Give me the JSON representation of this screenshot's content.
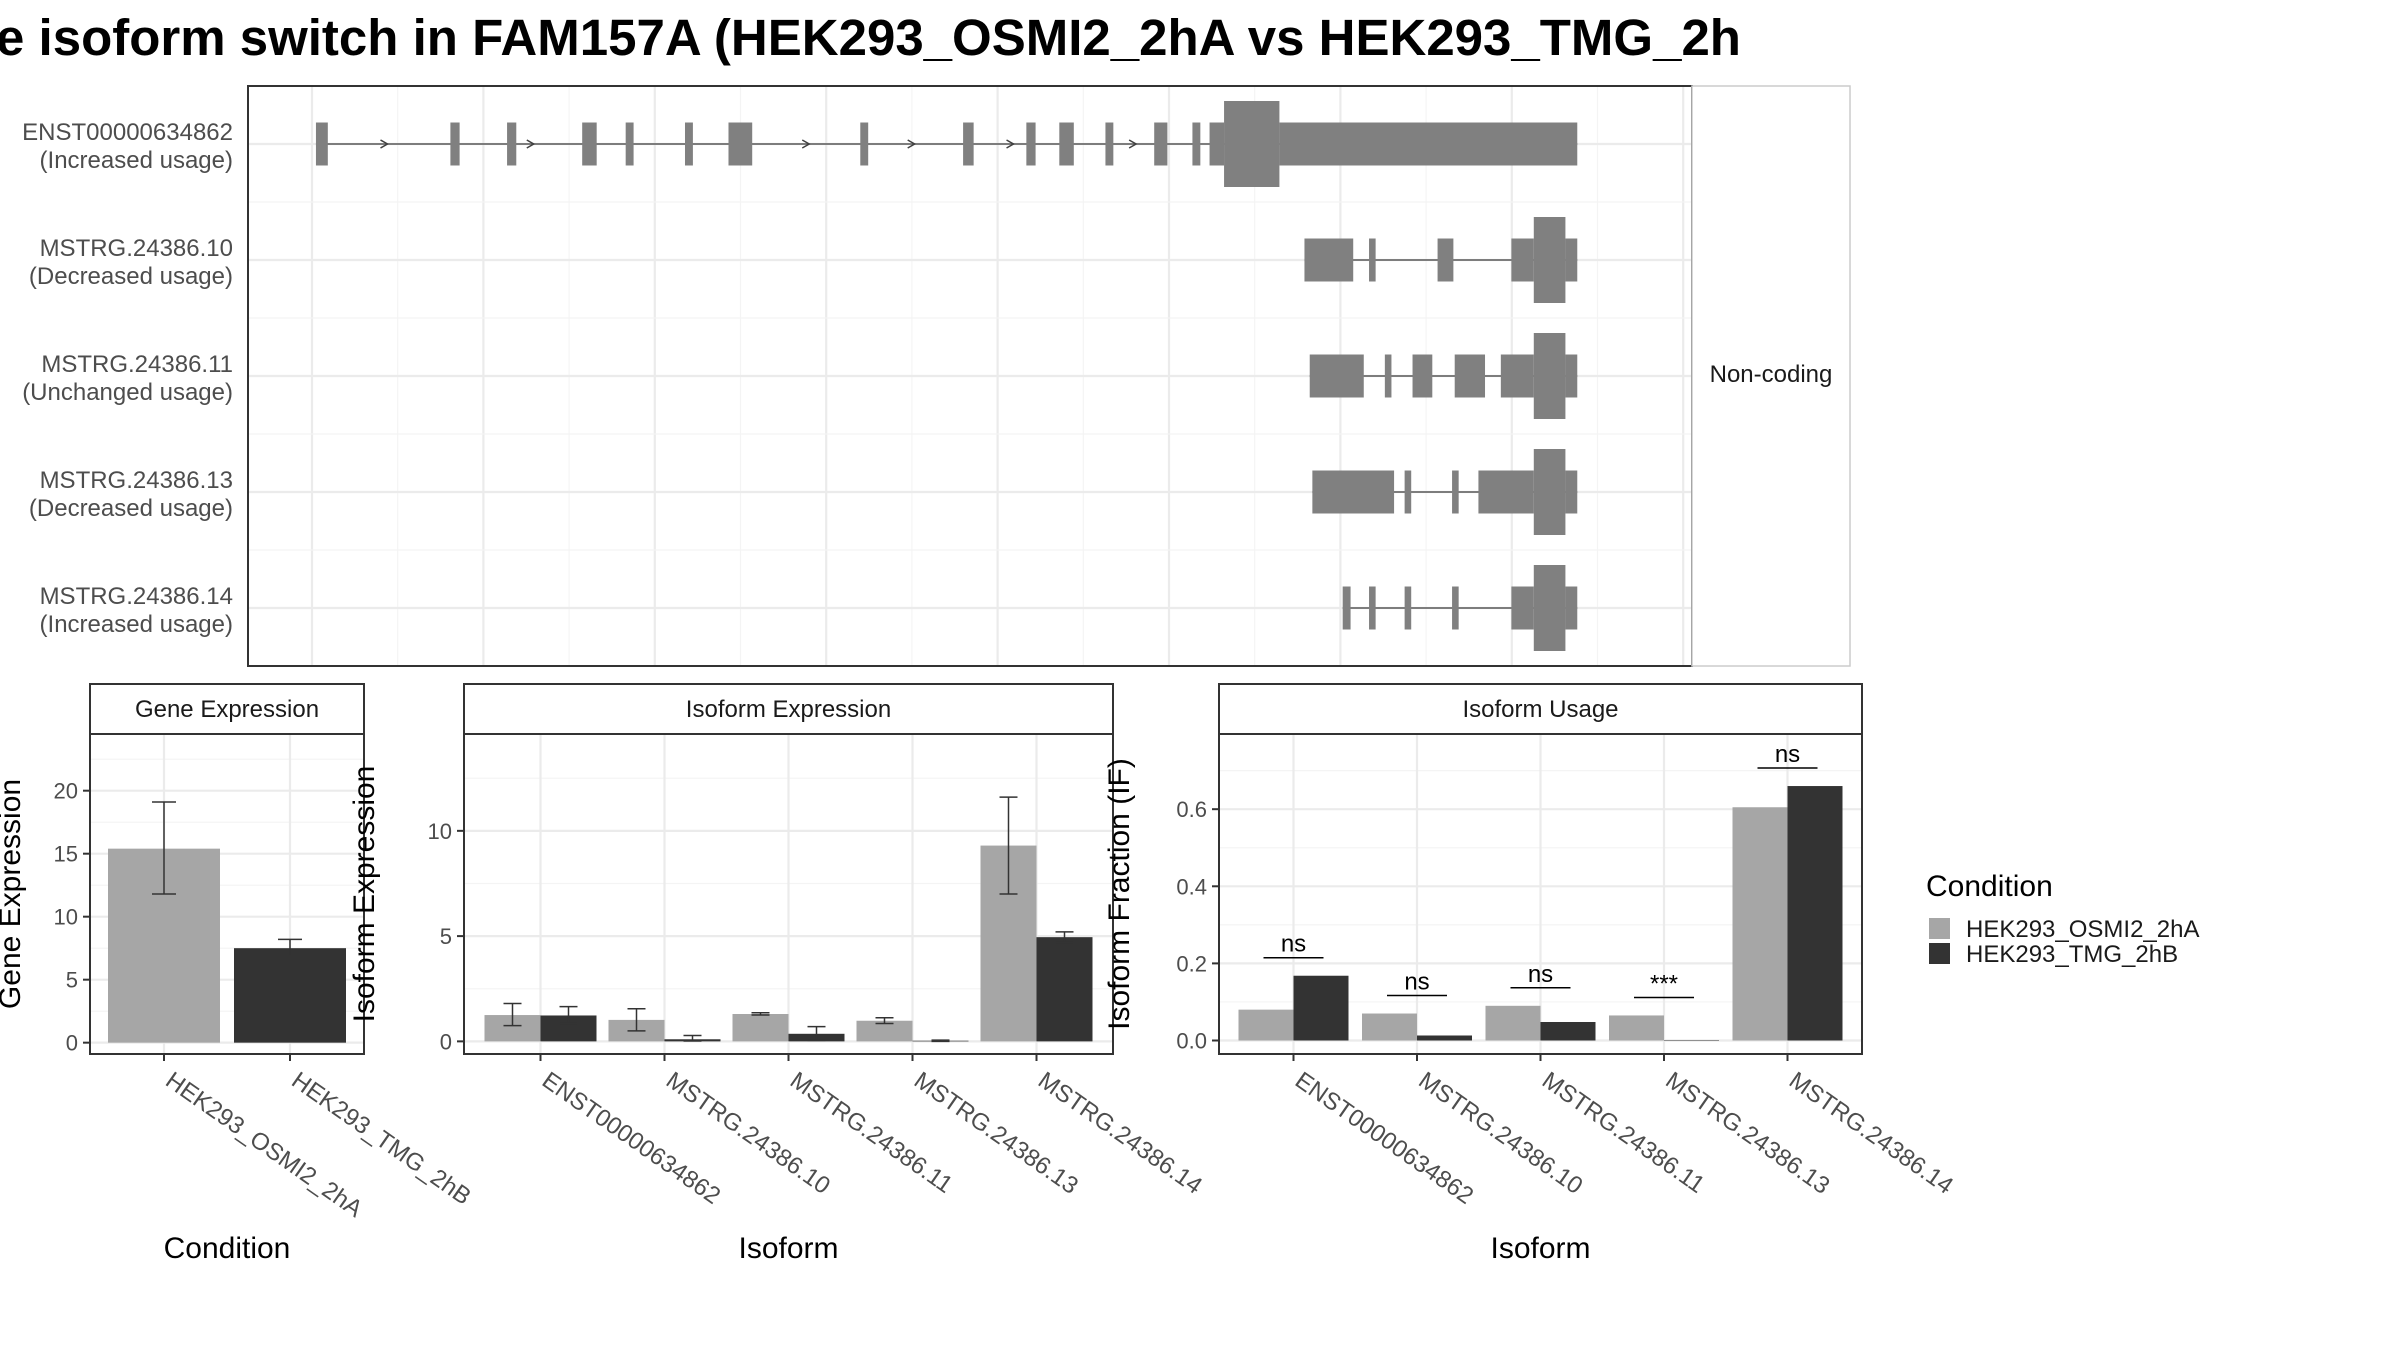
{
  "title": "e isoform switch in FAM157A (HEK293_OSMI2_2hA vs HEK293_TMG_2h",
  "colors": {
    "cond_a": "#a6a6a6",
    "cond_b": "#333333",
    "structure": "#808080",
    "grid": "#ebebeb",
    "panel_border": "#333333",
    "strip_fill": "#ffffff"
  },
  "structure": {
    "facet_label": "Non-coding",
    "transcripts": [
      {
        "name": "ENST00000634862",
        "usage": "(Increased usage)",
        "exons": [
          [
            0.3,
            1.2,
            "n"
          ],
          [
            10.5,
            11.2,
            "n"
          ],
          [
            14.8,
            15.5,
            "n"
          ],
          [
            20.5,
            21.6,
            "n"
          ],
          [
            23.8,
            24.4,
            "n"
          ],
          [
            28.3,
            28.9,
            "n"
          ],
          [
            31.6,
            33.4,
            "n"
          ],
          [
            41.6,
            42.2,
            "n"
          ],
          [
            49.4,
            50.2,
            "n"
          ],
          [
            54.2,
            54.9,
            "n"
          ],
          [
            56.7,
            57.8,
            "n"
          ],
          [
            60.2,
            60.8,
            "n"
          ],
          [
            63.9,
            64.9,
            "n"
          ],
          [
            66.8,
            67.4,
            "n"
          ],
          [
            68.1,
            69.2,
            "n"
          ],
          [
            69.2,
            73.4,
            "w"
          ],
          [
            73.4,
            96.0,
            "n"
          ]
        ],
        "arrows": [
          5.5,
          16.6,
          37.5,
          45.5,
          53.0,
          62.3
        ]
      },
      {
        "name": "MSTRG.24386.10",
        "usage": "(Decreased usage)",
        "exons": [
          [
            75.3,
            79.0,
            "n"
          ],
          [
            80.2,
            80.7,
            "n"
          ],
          [
            85.4,
            86.6,
            "n"
          ],
          [
            91.0,
            92.7,
            "n"
          ],
          [
            92.7,
            95.1,
            "w"
          ],
          [
            95.1,
            96.0,
            "n"
          ]
        ],
        "arrows": []
      },
      {
        "name": "MSTRG.24386.11",
        "usage": "(Unchanged usage)",
        "exons": [
          [
            75.7,
            79.8,
            "n"
          ],
          [
            81.4,
            81.9,
            "n"
          ],
          [
            83.5,
            85.0,
            "n"
          ],
          [
            86.7,
            89.0,
            "n"
          ],
          [
            90.2,
            92.7,
            "n"
          ],
          [
            92.7,
            95.1,
            "w"
          ],
          [
            95.1,
            96.0,
            "n"
          ]
        ],
        "arrows": []
      },
      {
        "name": "MSTRG.24386.13",
        "usage": "(Decreased usage)",
        "exons": [
          [
            75.9,
            82.1,
            "n"
          ],
          [
            82.9,
            83.4,
            "n"
          ],
          [
            86.5,
            87.0,
            "n"
          ],
          [
            88.5,
            92.7,
            "n"
          ],
          [
            92.7,
            95.1,
            "w"
          ],
          [
            95.1,
            96.0,
            "n"
          ]
        ],
        "arrows": []
      },
      {
        "name": "MSTRG.24386.14",
        "usage": "(Increased usage)",
        "exons": [
          [
            78.2,
            78.8,
            "n"
          ],
          [
            80.2,
            80.7,
            "n"
          ],
          [
            82.9,
            83.4,
            "n"
          ],
          [
            86.5,
            87.0,
            "n"
          ],
          [
            91.0,
            92.7,
            "n"
          ],
          [
            92.7,
            95.1,
            "w"
          ],
          [
            95.1,
            96.0,
            "n"
          ]
        ],
        "arrows": []
      }
    ]
  },
  "chart_data": [
    {
      "type": "bar",
      "panel": "Gene Expression",
      "xlabel": "Condition",
      "ylabel": "Gene Expression",
      "categories": [
        "HEK293_OSMI2_2hA",
        "HEK293_TMG_2hB"
      ],
      "values": [
        15.4,
        7.5
      ],
      "error_low": [
        11.8,
        6.9
      ],
      "error_high": [
        19.1,
        8.2
      ],
      "ylim": [
        -0.9,
        24.5
      ],
      "yticks": [
        "0",
        "5",
        "10",
        "15",
        "20"
      ]
    },
    {
      "type": "bar",
      "panel": "Isoform Expression",
      "xlabel": "Isoform",
      "ylabel": "Isoform Expression",
      "categories": [
        "ENST00000634862",
        "MSTRG.24386.10",
        "MSTRG.24386.11",
        "MSTRG.24386.13",
        "MSTRG.24386.14"
      ],
      "series": [
        {
          "name": "HEK293_OSMI2_2hA",
          "values": [
            1.25,
            1.02,
            1.3,
            0.98,
            9.3
          ],
          "error_low": [
            0.75,
            0.5,
            1.25,
            0.85,
            7.0
          ],
          "error_high": [
            1.8,
            1.55,
            1.36,
            1.12,
            11.6
          ]
        },
        {
          "name": "HEK293_TMG_2hB",
          "values": [
            1.23,
            0.1,
            0.36,
            0.03,
            4.95
          ],
          "error_low": [
            0.85,
            0.02,
            0.05,
            0.0,
            4.7
          ],
          "error_high": [
            1.65,
            0.28,
            0.7,
            0.06,
            5.2
          ]
        }
      ],
      "ylim": [
        -0.6,
        14.6
      ],
      "yticks": [
        "0",
        "5",
        "10"
      ]
    },
    {
      "type": "bar",
      "panel": "Isoform Usage",
      "xlabel": "Isoform",
      "ylabel": "Isoform Fraction (IF)",
      "categories": [
        "ENST00000634862",
        "MSTRG.24386.10",
        "MSTRG.24386.11",
        "MSTRG.24386.13",
        "MSTRG.24386.14"
      ],
      "series": [
        {
          "name": "HEK293_OSMI2_2hA",
          "values": [
            0.08,
            0.07,
            0.09,
            0.065,
            0.605
          ]
        },
        {
          "name": "HEK293_TMG_2hB",
          "values": [
            0.168,
            0.013,
            0.048,
            0.0,
            0.66
          ]
        }
      ],
      "significance": [
        "ns",
        "ns",
        "ns",
        "***",
        "ns"
      ],
      "ylim": [
        -0.035,
        0.795
      ],
      "yticks": [
        "0.0",
        "0.2",
        "0.4",
        "0.6"
      ]
    }
  ],
  "legend": {
    "title": "Condition",
    "items": [
      "HEK293_OSMI2_2hA",
      "HEK293_TMG_2hB"
    ]
  }
}
